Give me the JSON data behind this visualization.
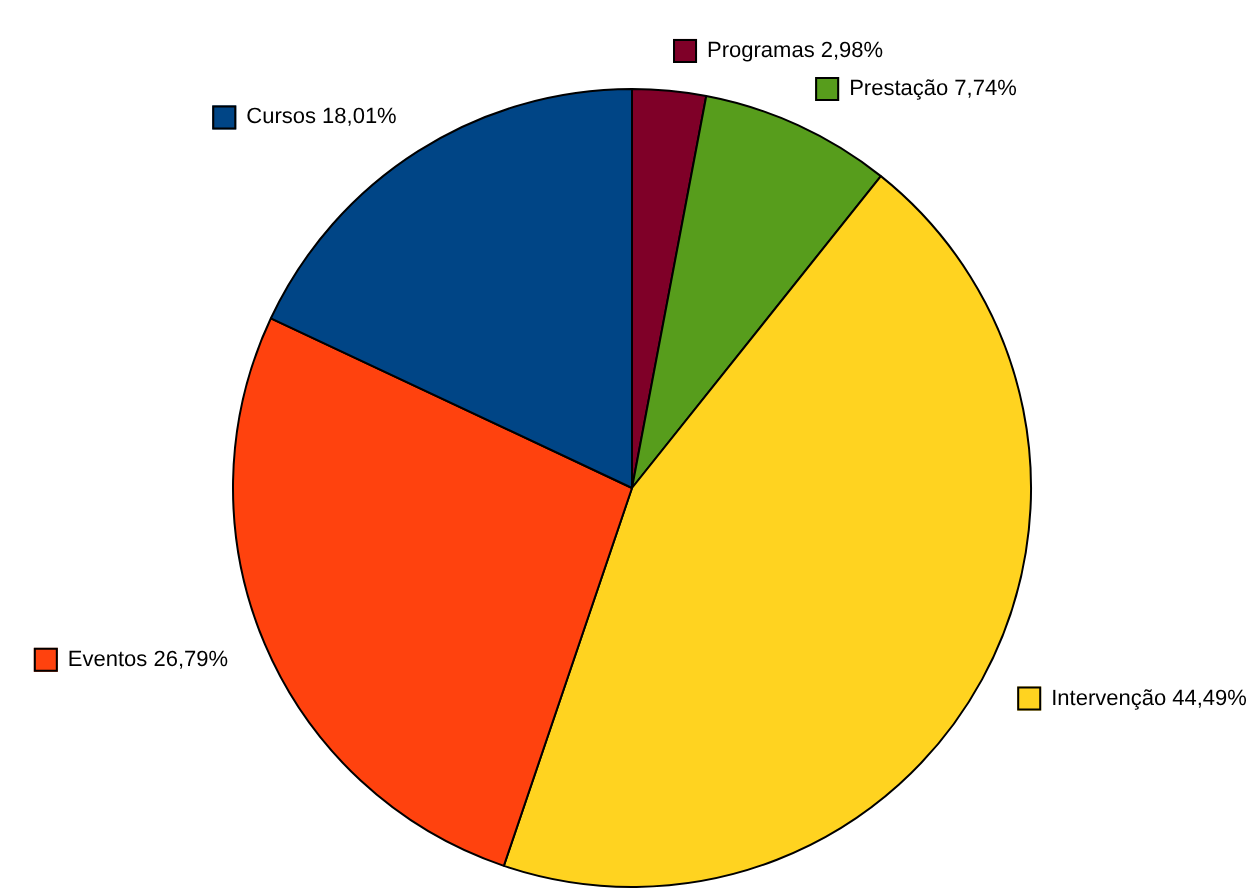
{
  "chart_data": {
    "type": "pie",
    "categories": [
      "Programas",
      "Prestação",
      "Intervenção",
      "Eventos",
      "Cursos"
    ],
    "values": [
      2.98,
      7.74,
      44.49,
      26.79,
      18.01
    ],
    "value_labels": [
      "2,98%",
      "7,74%",
      "44,49%",
      "26,79%",
      "18,01%"
    ],
    "colors": [
      "#7f0028",
      "#579d1c",
      "#ffd320",
      "#ff420e",
      "#004586"
    ],
    "legend": "top"
  }
}
